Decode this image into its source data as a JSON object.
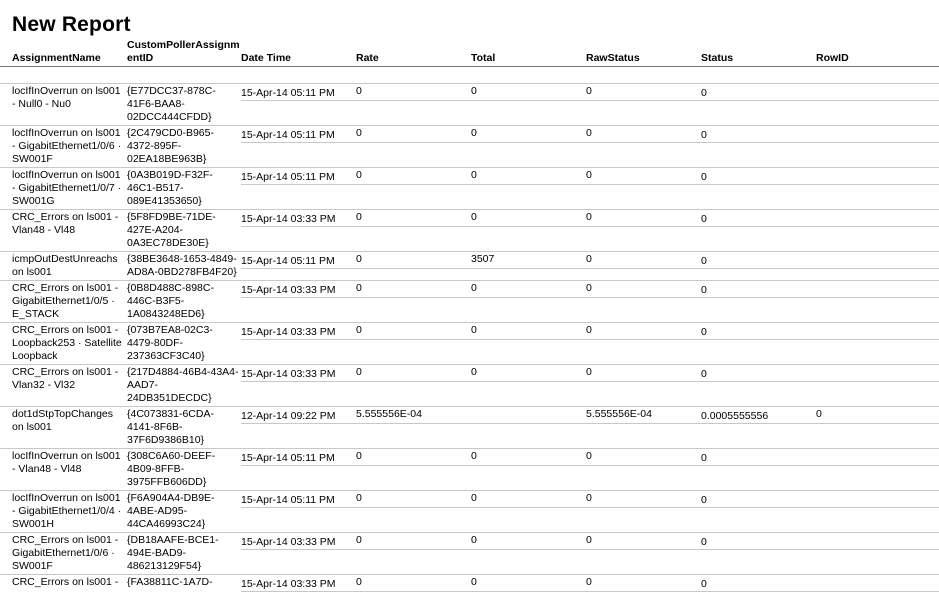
{
  "title": "New Report",
  "columns": [
    "AssignmentName",
    "CustomPollerAssignmentID",
    "Date Time",
    "Rate",
    "Total",
    "RawStatus",
    "Status",
    "RowID"
  ],
  "rows": [
    {
      "name": "locIfInOverrun on ls001 - Null0 - Nu0",
      "id": "{E77DCC37-878C-41F6-BAA8-02DCC444CFDD}",
      "dt": "15-Apr-14 05:11 PM",
      "rate": "0",
      "total": "0",
      "raw": "0",
      "status": "0",
      "rowid": ""
    },
    {
      "name": "locIfInOverrun on ls001 - GigabitEthernet1/0/6 · SW001F",
      "id": "{2C479CD0-B965-4372-895F-02EA18BE963B}",
      "dt": "15-Apr-14 05:11 PM",
      "rate": "0",
      "total": "0",
      "raw": "0",
      "status": "0",
      "rowid": ""
    },
    {
      "name": "locIfInOverrun on ls001 - GigabitEthernet1/0/7 · SW001G",
      "id": "{0A3B019D-F32F-46C1-B517-089E41353650}",
      "dt": "15-Apr-14 05:11 PM",
      "rate": "0",
      "total": "0",
      "raw": "0",
      "status": "0",
      "rowid": ""
    },
    {
      "name": "CRC_Errors on ls001 - Vlan48 - Vl48",
      "id": "{5F8FD9BE-71DE-427E-A204-0A3EC78DE30E}",
      "dt": "15-Apr-14 03:33 PM",
      "rate": "0",
      "total": "0",
      "raw": "0",
      "status": "0",
      "rowid": ""
    },
    {
      "name": "icmpOutDestUnreachs on ls001",
      "id": "{38BE3648-1653-4849-AD8A-0BD278FB4F20}",
      "dt": "15-Apr-14 05:11 PM",
      "rate": "0",
      "total": "3507",
      "raw": "0",
      "status": "0",
      "rowid": ""
    },
    {
      "name": "CRC_Errors on ls001 - GigabitEthernet1/0/5 · E_STACK",
      "id": "{0B8D488C-898C-446C-B3F5-1A0843248ED6}",
      "dt": "15-Apr-14 03:33 PM",
      "rate": "0",
      "total": "0",
      "raw": "0",
      "status": "0",
      "rowid": ""
    },
    {
      "name": "CRC_Errors on ls001 - Loopback253 · Satellite Loopback",
      "id": "{073B7EA8-02C3-4479-80DF-237363CF3C40}",
      "dt": "15-Apr-14 03:33 PM",
      "rate": "0",
      "total": "0",
      "raw": "0",
      "status": "0",
      "rowid": ""
    },
    {
      "name": "CRC_Errors on ls001 - Vlan32 - Vl32",
      "id": "{217D4884-46B4-43A4-AAD7-24DB351DECDC}",
      "dt": "15-Apr-14 03:33 PM",
      "rate": "0",
      "total": "0",
      "raw": "0",
      "status": "0",
      "rowid": ""
    },
    {
      "name": "dot1dStpTopChanges on ls001",
      "id": "{4C073831-6CDA-4141-8F6B-37F6D9386B10}",
      "dt": "12-Apr-14 09:22 PM",
      "rate": "5.555556E-04",
      "total": "",
      "raw": "5.555556E-04",
      "status": "0.0005555556",
      "rowid": "0"
    },
    {
      "name": "locIfInOverrun on ls001 - Vlan48 - Vl48",
      "id": "{308C6A60-DEEF-4B09-8FFB-3975FFB606DD}",
      "dt": "15-Apr-14 05:11 PM",
      "rate": "0",
      "total": "0",
      "raw": "0",
      "status": "0",
      "rowid": ""
    },
    {
      "name": "locIfInOverrun on ls001 - GigabitEthernet1/0/4 · SW001H",
      "id": "{F6A904A4-DB9E-4ABE-AD95-44CA46993C24}",
      "dt": "15-Apr-14 05:11 PM",
      "rate": "0",
      "total": "0",
      "raw": "0",
      "status": "0",
      "rowid": ""
    },
    {
      "name": "CRC_Errors on ls001 - GigabitEthernet1/0/6 · SW001F",
      "id": "{DB18AAFE-BCE1-494E-BAD9-486213129F54}",
      "dt": "15-Apr-14 03:33 PM",
      "rate": "0",
      "total": "0",
      "raw": "0",
      "status": "0",
      "rowid": ""
    },
    {
      "name": "CRC_Errors on ls001 -",
      "id": "{FA38811C-1A7D-",
      "dt": "15-Apr-14 03:33 PM",
      "rate": "0",
      "total": "0",
      "raw": "0",
      "status": "0",
      "rowid": ""
    }
  ]
}
